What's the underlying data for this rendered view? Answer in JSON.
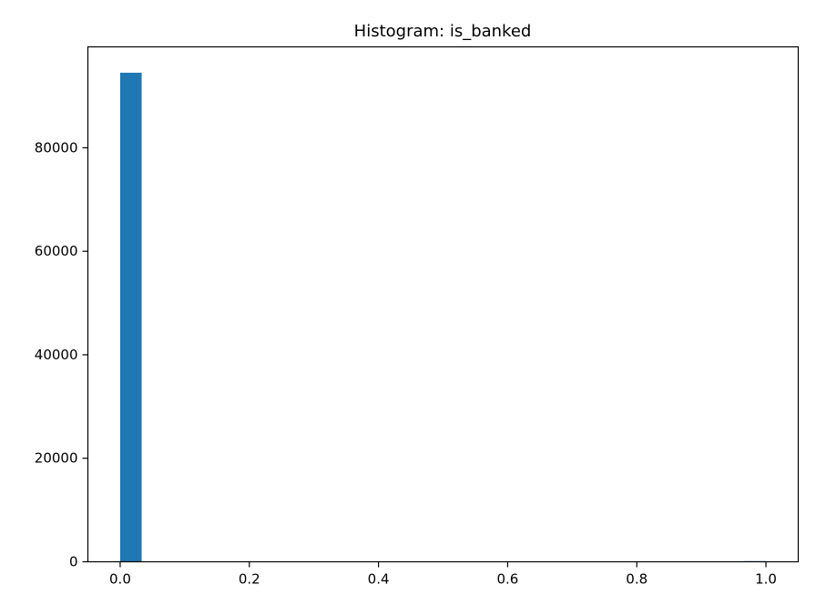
{
  "chart_data": {
    "type": "bar",
    "title": "Histogram: is_banked",
    "xlabel": "",
    "ylabel": "",
    "xlim": [
      -0.05,
      1.05
    ],
    "ylim": [
      0,
      99500
    ],
    "x_ticks": [
      "0.0",
      "0.2",
      "0.4",
      "0.6",
      "0.8",
      "1.0"
    ],
    "x_tick_values": [
      0.0,
      0.2,
      0.4,
      0.6,
      0.8,
      1.0
    ],
    "y_ticks": [
      "0",
      "20000",
      "40000",
      "60000",
      "80000"
    ],
    "y_tick_values": [
      0,
      20000,
      40000,
      60000,
      80000
    ],
    "bins": [
      {
        "start": 0.0,
        "end": 0.0333,
        "count": 94500
      },
      {
        "start": 0.9667,
        "end": 1.0,
        "count": 120
      }
    ],
    "bar_color": "#1f77b4",
    "grid": false,
    "legend": "none"
  }
}
